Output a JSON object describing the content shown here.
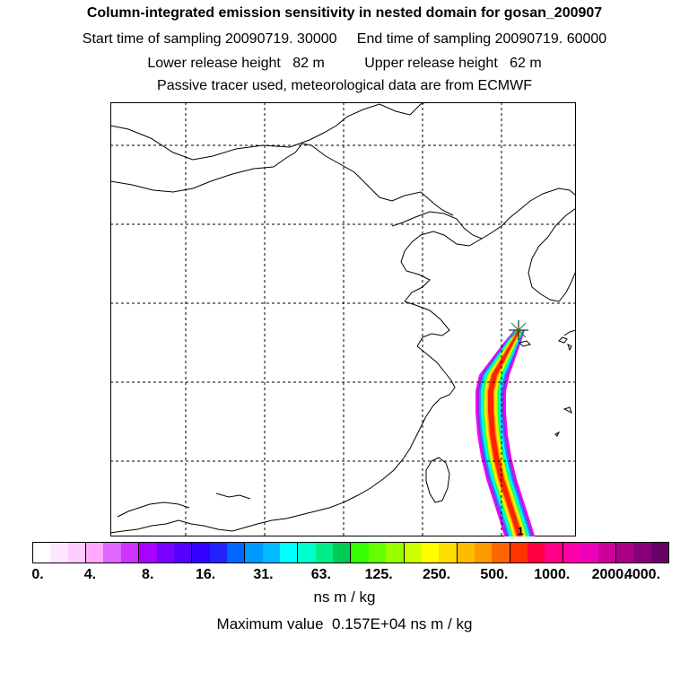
{
  "header": {
    "title": "Column-integrated emission sensitivity in nested domain for gosan_200907",
    "sampling_line": "Start time of sampling 20090719. 30000     End time of sampling 20090719. 60000",
    "height_line": "Lower release height   82 m          Upper release height   62 m",
    "model_line": "Passive tracer used, meteorological data are from ECMWF"
  },
  "map": {
    "marker_label": "1",
    "plume_colors": [
      "#ff00ff",
      "#8a2be2",
      "#1e90ff",
      "#00ffff",
      "#00ff66",
      "#ccff00",
      "#ffee00",
      "#ffa500",
      "#ff2200"
    ]
  },
  "colorbar": {
    "segment_colors": [
      "#ffffff",
      "#ffe6ff",
      "#ffccff",
      "#ffaaff",
      "#e066ff",
      "#cc33ff",
      "#aa00ff",
      "#7a00ff",
      "#5500ff",
      "#3300ff",
      "#2222ff",
      "#0066ff",
      "#0099ff",
      "#00bbff",
      "#00ffff",
      "#00ffcc",
      "#00ee88",
      "#00cc55",
      "#33ff00",
      "#66ff00",
      "#99ff00",
      "#ccff00",
      "#ffff00",
      "#ffdd00",
      "#ffbb00",
      "#ff9900",
      "#ff6600",
      "#ff3300",
      "#ff0044",
      "#ff0088",
      "#ff00aa",
      "#ee00bb",
      "#cc0099",
      "#aa0088",
      "#880077",
      "#660066"
    ],
    "ticks": [
      "0.",
      "4.",
      "8.",
      "16.",
      "31.",
      "63.",
      "125.",
      "250.",
      "500.",
      "1000.",
      "2000.",
      "4000."
    ],
    "units": "ns m / kg",
    "max_value": "Maximum value  0.157E+04 ns m / kg"
  }
}
